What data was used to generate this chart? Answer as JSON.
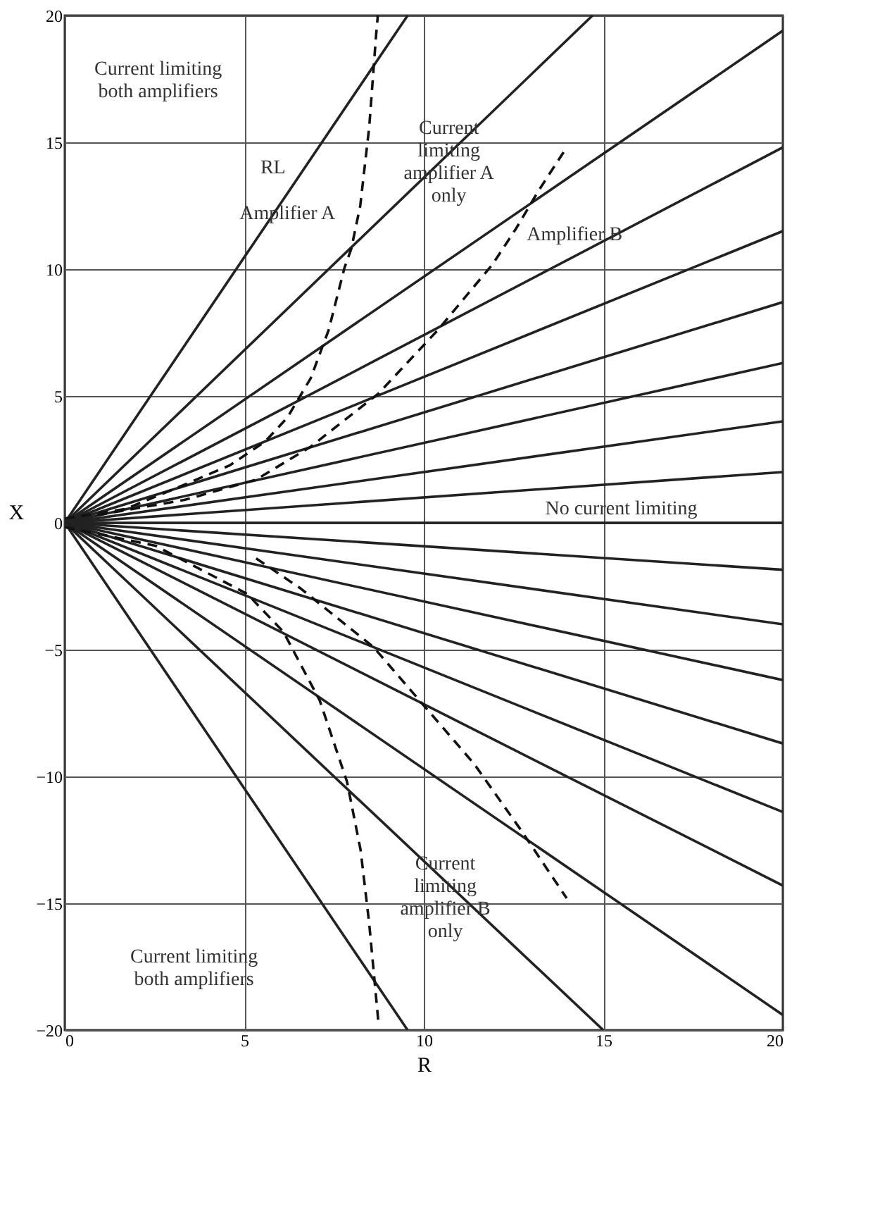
{
  "chart_data": {
    "type": "line",
    "xlabel": "R",
    "ylabel": "X",
    "xlim": [
      0,
      20
    ],
    "ylim": [
      -20,
      20
    ],
    "xticks": [
      0,
      5,
      10,
      15,
      20
    ],
    "yticks": [
      -20,
      -15,
      -10,
      -5,
      0,
      5,
      10,
      15,
      20
    ],
    "grid": true,
    "series": [
      {
        "color": "#222222",
        "x": [
          0,
          9.55
        ],
        "values": [
          0,
          20
        ]
      },
      {
        "color": "#222222",
        "x": [
          0,
          14.7
        ],
        "values": [
          0,
          20
        ]
      },
      {
        "color": "#222222",
        "x": [
          0,
          20
        ],
        "values": [
          0,
          19.4
        ]
      },
      {
        "color": "#222222",
        "x": [
          0,
          20
        ],
        "values": [
          0,
          14.8
        ]
      },
      {
        "color": "#222222",
        "x": [
          0,
          20
        ],
        "values": [
          0,
          11.5
        ]
      },
      {
        "color": "#222222",
        "x": [
          0,
          20
        ],
        "values": [
          0,
          8.7
        ]
      },
      {
        "color": "#222222",
        "x": [
          0,
          20
        ],
        "values": [
          0,
          6.3
        ]
      },
      {
        "color": "#222222",
        "x": [
          0,
          20
        ],
        "values": [
          0,
          4.0
        ]
      },
      {
        "color": "#222222",
        "x": [
          0,
          20
        ],
        "values": [
          0,
          2.0
        ]
      },
      {
        "color": "#222222",
        "x": [
          0,
          20
        ],
        "values": [
          0,
          0
        ]
      },
      {
        "color": "#222222",
        "x": [
          0,
          20
        ],
        "values": [
          0,
          -1.85
        ]
      },
      {
        "color": "#222222",
        "x": [
          0,
          20
        ],
        "values": [
          0,
          -4.0
        ]
      },
      {
        "color": "#222222",
        "x": [
          0,
          20
        ],
        "values": [
          0,
          -6.2
        ]
      },
      {
        "color": "#222222",
        "x": [
          0,
          20
        ],
        "values": [
          0,
          -8.7
        ]
      },
      {
        "color": "#222222",
        "x": [
          0,
          20
        ],
        "values": [
          0,
          -11.4
        ]
      },
      {
        "color": "#222222",
        "x": [
          0,
          20
        ],
        "values": [
          0,
          -14.3
        ]
      },
      {
        "color": "#222222",
        "x": [
          0,
          20
        ],
        "values": [
          0,
          -19.4
        ]
      },
      {
        "color": "#222222",
        "x": [
          0,
          15
        ],
        "values": [
          0,
          -20
        ]
      },
      {
        "color": "#222222",
        "x": [
          0,
          9.55
        ],
        "values": [
          0,
          -20
        ]
      },
      {
        "color": "#111111",
        "line_style": "dashed",
        "x": [
          0,
          1.7,
          3.33,
          4.6,
          5.58,
          6.2,
          6.85,
          7.35,
          7.79,
          7.98,
          8.23,
          8.48,
          8.67,
          8.72
        ],
        "values": [
          0.17,
          0.55,
          1.5,
          2.27,
          3.2,
          4.15,
          5.7,
          7.6,
          10.05,
          10.8,
          12.5,
          15.6,
          19.2,
          20
        ]
      },
      {
        "color": "#111111",
        "line_style": "dashed",
        "x": [
          0,
          2.52,
          5.08,
          6.09,
          7.1,
          7.86,
          8.24,
          8.48,
          8.74
        ],
        "values": [
          -0.17,
          -0.9,
          -2.8,
          -4.3,
          -7.0,
          -10.2,
          -12.9,
          -15.8,
          -19.75
        ]
      },
      {
        "color": "#111111",
        "line_style": "dashed",
        "x": [
          0.9,
          3.33,
          5.33,
          6.85,
          8.74,
          10.39,
          11.92,
          12.57,
          13.2,
          13.98
        ],
        "values": [
          0.3,
          0.9,
          1.7,
          3.0,
          5.1,
          7.6,
          10.2,
          11.6,
          13.1,
          14.8
        ]
      },
      {
        "color": "#111111",
        "line_style": "dashed",
        "x": [
          5.33,
          6.58,
          8.6,
          10,
          11.4,
          12.7,
          13.98
        ],
        "values": [
          -1.4,
          -2.6,
          -4.9,
          -7.2,
          -9.5,
          -12.1,
          -14.8
        ]
      }
    ],
    "annotations": [
      "Current limiting\nboth amplifiers",
      "RL",
      "Amplifier A",
      {
        "text": "Current\nlimiting\namplifier A\nonly",
        "x": 10.7,
        "y": 15.0
      },
      {
        "text": "Amplifier B",
        "x": 14.2,
        "y": 10.8
      },
      {
        "text": "No current limiting",
        "x": 15.5,
        "y": 0
      },
      {
        "text": "Current\nlimiting\namplifier B\nonly",
        "x": 10.6,
        "y": -14.0
      },
      "Current limiting\nboth amplifiers"
    ]
  }
}
